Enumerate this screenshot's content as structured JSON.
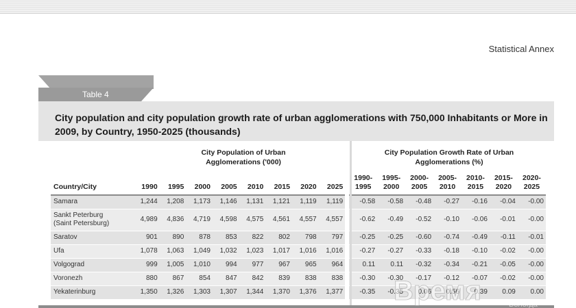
{
  "header": {
    "annex_label": "Statistical Annex"
  },
  "table": {
    "tab_label": "Table 4",
    "title": "City population and city population growth rate of urban agglomerations with 750,000 Inhabitants or More in 2009, by Country, 1950-2025 (thousands)",
    "group_population": "City Population of Urban Agglomerations ('000)",
    "group_rate": "City Population Growth Rate of Urban Agglomerations (%)",
    "col_city": "Country/City",
    "pop_years": [
      "1990",
      "1995",
      "2000",
      "2005",
      "2010",
      "2015",
      "2020",
      "2025"
    ],
    "rate_periods": [
      [
        "1990-",
        "1995"
      ],
      [
        "1995-",
        "2000"
      ],
      [
        "2000-",
        "2005"
      ],
      [
        "2005-",
        "2010"
      ],
      [
        "2010-",
        "2015"
      ],
      [
        "2015-",
        "2020"
      ],
      [
        "2020-",
        "2025"
      ]
    ],
    "rows": [
      {
        "city": "Samara",
        "sub": "",
        "pop": [
          "1,244",
          "1,208",
          "1,173",
          "1,146",
          "1,131",
          "1,121",
          "1,119",
          "1,119"
        ],
        "rate": [
          "-0.58",
          "-0.58",
          "-0.48",
          "-0.27",
          "-0.16",
          "-0.04",
          "-0.00"
        ]
      },
      {
        "city": "Sankt Peterburg",
        "sub": "(Saint Petersburg)",
        "pop": [
          "4,989",
          "4,836",
          "4,719",
          "4,598",
          "4,575",
          "4,561",
          "4,557",
          "4,557"
        ],
        "rate": [
          "-0.62",
          "-0.49",
          "-0.52",
          "-0.10",
          "-0.06",
          "-0.01",
          "-0.00"
        ]
      },
      {
        "city": "Saratov",
        "sub": "",
        "pop": [
          "901",
          "890",
          "878",
          "853",
          "822",
          "802",
          "798",
          "797"
        ],
        "rate": [
          "-0.25",
          "-0.25",
          "-0.60",
          "-0.74",
          "-0.49",
          "-0.11",
          "-0.01"
        ]
      },
      {
        "city": "Ufa",
        "sub": "",
        "pop": [
          "1,078",
          "1,063",
          "1,049",
          "1,032",
          "1,023",
          "1,017",
          "1,016",
          "1,016"
        ],
        "rate": [
          "-0.27",
          "-0.27",
          "-0.33",
          "-0.18",
          "-0.10",
          "-0.02",
          "-0.00"
        ]
      },
      {
        "city": "Volgograd",
        "sub": "",
        "pop": [
          "999",
          "1,005",
          "1,010",
          "994",
          "977",
          "967",
          "965",
          "964"
        ],
        "rate": [
          "0.11",
          "0.11",
          "-0.32",
          "-0.34",
          "-0.21",
          "-0.05",
          "-0.00"
        ]
      },
      {
        "city": "Voronezh",
        "sub": "",
        "pop": [
          "880",
          "867",
          "854",
          "847",
          "842",
          "839",
          "838",
          "838"
        ],
        "rate": [
          "-0.30",
          "-0.30",
          "-0.17",
          "-0.12",
          "-0.07",
          "-0.02",
          "-0.00"
        ]
      },
      {
        "city": "Yekaterinburg",
        "sub": "",
        "pop": [
          "1,350",
          "1,326",
          "1,303",
          "1,307",
          "1,344",
          "1,370",
          "1,376",
          "1,377"
        ],
        "rate": [
          "-0.35",
          "-0.35",
          "0.06",
          "0.56",
          "0.39",
          "0.09",
          "0.00"
        ]
      }
    ]
  },
  "watermark": {
    "text": "Время",
    "subtext": "Вологда"
  }
}
